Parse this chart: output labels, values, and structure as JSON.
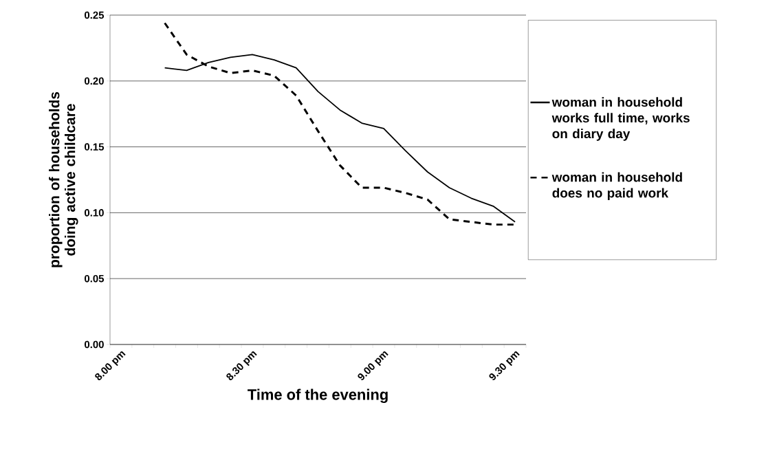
{
  "chart_data": {
    "type": "line",
    "xlabel": "Time of the evening",
    "ylabel": "proportion of households doing active childcare",
    "categories": [
      "8.00 pm",
      null,
      null,
      null,
      null,
      null,
      "8.30 pm",
      null,
      null,
      null,
      null,
      null,
      "9.00 pm",
      null,
      null,
      null,
      null,
      null,
      "9.30 pm"
    ],
    "series": [
      {
        "name": "woman in household works full time, works on diary day",
        "color": "#000000",
        "line_style": "solid",
        "values": [
          null,
          null,
          0.21,
          0.208,
          0.214,
          0.218,
          0.22,
          0.216,
          0.21,
          0.192,
          0.178,
          0.168,
          0.164,
          0.147,
          0.131,
          0.119,
          0.111,
          0.105,
          0.093
        ]
      },
      {
        "name": "woman in household does no paid work",
        "color": "#000000",
        "line_style": "dashed",
        "values": [
          null,
          null,
          0.244,
          0.22,
          0.211,
          0.206,
          0.208,
          0.204,
          0.189,
          0.162,
          0.136,
          0.119,
          0.119,
          0.115,
          0.11,
          0.095,
          0.093,
          0.091,
          0.091
        ]
      }
    ],
    "ylim": [
      0,
      0.25
    ],
    "yticks": [
      {
        "value": 0,
        "label": "0.00"
      },
      {
        "value": 0.05,
        "label": "0.05"
      },
      {
        "value": 0.1,
        "label": "0.10"
      },
      {
        "value": 0.15,
        "label": "0.15"
      },
      {
        "value": 0.2,
        "label": "0.20"
      },
      {
        "value": 0.25,
        "label": "0.25"
      }
    ],
    "grid": "y",
    "legend": "right",
    "marker": "none"
  }
}
